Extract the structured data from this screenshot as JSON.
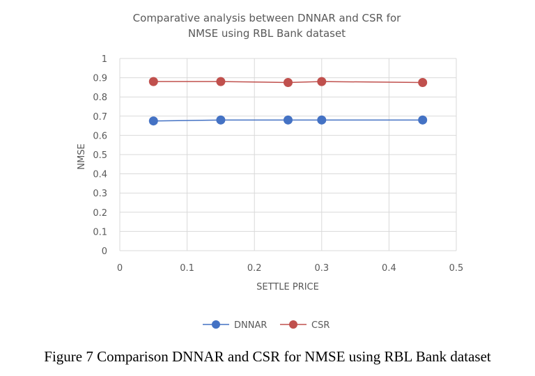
{
  "chart_data": {
    "type": "line",
    "title_lines": [
      "Comparative  analysis between  DNNAR and  CSR for",
      "NMSE using RBL Bank dataset"
    ],
    "xlabel": "SETTLE PRICE",
    "ylabel": "NMSE",
    "xlim": [
      0,
      0.5
    ],
    "ylim": [
      0,
      1
    ],
    "xticks": [
      "0",
      "0.1",
      "0.2",
      "0.3",
      "0.4",
      "0.5"
    ],
    "yticks": [
      "0",
      "0.1",
      "0.2",
      "0.3",
      "0.4",
      "0.5",
      "0.6",
      "0.7",
      "0.8",
      "0.9",
      "1"
    ],
    "grid": true,
    "legend_position": "bottom",
    "series": [
      {
        "name": "DNNAR",
        "color": "#4472C4",
        "points": [
          [
            0.05,
            0.675
          ],
          [
            0.15,
            0.68
          ],
          [
            0.25,
            0.68
          ],
          [
            0.3,
            0.68
          ],
          [
            0.45,
            0.68
          ]
        ]
      },
      {
        "name": "CSR",
        "color": "#C0504D",
        "points": [
          [
            0.05,
            0.88
          ],
          [
            0.15,
            0.88
          ],
          [
            0.25,
            0.875
          ],
          [
            0.3,
            0.88
          ],
          [
            0.45,
            0.875
          ]
        ]
      }
    ]
  },
  "caption": "Figure 7 Comparison DNNAR and CSR for NMSE using RBL Bank dataset"
}
